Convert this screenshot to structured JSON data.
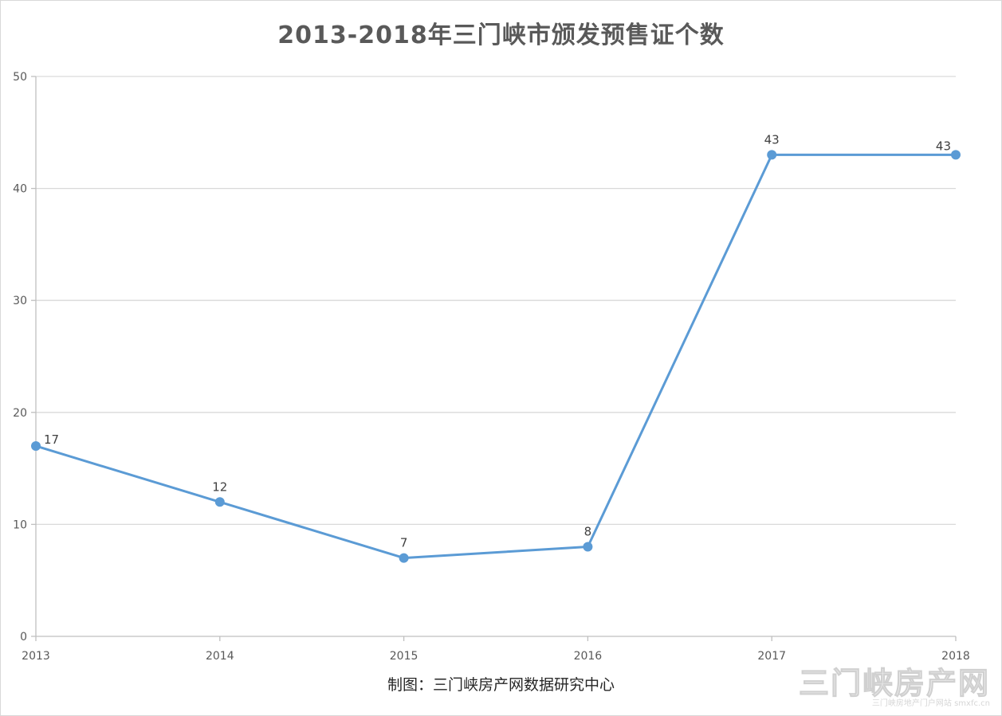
{
  "chart_data": {
    "type": "line",
    "title": "2013-2018年三门峡市颁发预售证个数",
    "x": [
      "2013",
      "2014",
      "2015",
      "2016",
      "2017",
      "2018"
    ],
    "series": [
      {
        "values": [
          17,
          12,
          7,
          8,
          43,
          43
        ],
        "color": "#5b9bd5"
      }
    ],
    "data_labels": [
      "17",
      "12",
      "7",
      "8",
      "43",
      "43"
    ],
    "ylim": [
      0,
      50
    ],
    "yticks": [
      "0",
      "10",
      "20",
      "30",
      "40",
      "50"
    ],
    "grid": true,
    "xlabel": "",
    "ylabel": ""
  },
  "footer": {
    "source": "制图：三门峡房产网数据研究中心"
  },
  "watermark": {
    "main": "三门峡房产网",
    "sub": "三门峡房地产门户网站 smxfc.cn"
  },
  "colors": {
    "line": "#5b9bd5",
    "grid": "#d9d9d9",
    "axis": "#bfbfbf",
    "tick_text": "#595959"
  }
}
